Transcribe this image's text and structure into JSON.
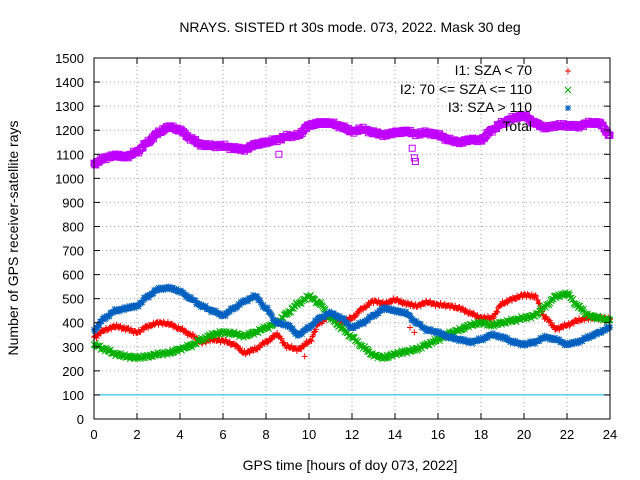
{
  "chart_data": {
    "type": "scatter",
    "title": "NRAYS. SISTED rt 30s mode. 073, 2022. Mask 30 deg",
    "xlabel": "GPS time [hours of doy 073, 2022]",
    "ylabel": "Number of GPS receiver-satellite rays",
    "xlim": [
      0,
      24
    ],
    "ylim": [
      0,
      1500
    ],
    "xticks": [
      "0",
      "2",
      "4",
      "6",
      "8",
      "10",
      "12",
      "14",
      "16",
      "18",
      "20",
      "22",
      "24"
    ],
    "yticks": [
      "0",
      "100",
      "200",
      "300",
      "400",
      "500",
      "600",
      "700",
      "800",
      "900",
      "1000",
      "1100",
      "1200",
      "1300",
      "1400",
      "1500"
    ],
    "grid": true,
    "legend_position": "top-right",
    "reference_line": {
      "y": 100,
      "color": "#00c0e0"
    },
    "series": [
      {
        "name": "I1: SZA < 70",
        "marker": "+",
        "color": "#ff0000",
        "x": [
          0,
          0.5,
          1,
          1.5,
          2,
          2.5,
          3,
          3.5,
          4,
          4.5,
          5,
          5.5,
          6,
          6.5,
          7,
          7.5,
          8,
          8.5,
          9,
          9.5,
          10,
          10.5,
          11,
          11.5,
          12,
          12.5,
          13,
          13.5,
          14,
          14.5,
          15,
          15.5,
          16,
          16.5,
          17,
          17.5,
          18,
          18.5,
          19,
          19.5,
          20,
          20.5,
          21,
          21.5,
          22,
          22.5,
          23,
          23.5,
          24
        ],
        "y": [
          340,
          370,
          385,
          375,
          360,
          385,
          400,
          395,
          375,
          350,
          320,
          330,
          325,
          310,
          275,
          290,
          320,
          350,
          300,
          290,
          320,
          400,
          430,
          400,
          420,
          460,
          490,
          480,
          495,
          480,
          470,
          485,
          475,
          470,
          460,
          440,
          420,
          420,
          480,
          500,
          515,
          510,
          420,
          375,
          390,
          410,
          420,
          420,
          415
        ]
      },
      {
        "name": "I2: 70 <= SZA <= 110",
        "marker": "x",
        "color": "#00b000",
        "x": [
          0,
          0.5,
          1,
          1.5,
          2,
          2.5,
          3,
          3.5,
          4,
          4.5,
          5,
          5.5,
          6,
          6.5,
          7,
          7.5,
          8,
          8.5,
          9,
          9.5,
          10,
          10.5,
          11,
          11.5,
          12,
          12.5,
          13,
          13.5,
          14,
          14.5,
          15,
          15.5,
          16,
          16.5,
          17,
          17.5,
          18,
          18.5,
          19,
          19.5,
          20,
          20.5,
          21,
          21.5,
          22,
          22.5,
          23,
          23.5,
          24
        ],
        "y": [
          310,
          290,
          270,
          260,
          255,
          260,
          270,
          275,
          290,
          305,
          330,
          350,
          360,
          355,
          345,
          360,
          380,
          400,
          440,
          480,
          510,
          480,
          420,
          380,
          340,
          300,
          265,
          255,
          270,
          280,
          290,
          310,
          330,
          355,
          370,
          390,
          400,
          390,
          400,
          410,
          420,
          430,
          470,
          510,
          520,
          470,
          430,
          420,
          410
        ]
      },
      {
        "name": "I3: SZA > 110",
        "marker": "*",
        "color": "#0060c0",
        "x": [
          0,
          0.5,
          1,
          1.5,
          2,
          2.5,
          3,
          3.5,
          4,
          4.5,
          5,
          5.5,
          6,
          6.5,
          7,
          7.5,
          8,
          8.5,
          9,
          9.5,
          10,
          10.5,
          11,
          11.5,
          12,
          12.5,
          13,
          13.5,
          14,
          14.5,
          15,
          15.5,
          16,
          16.5,
          17,
          17.5,
          18,
          18.5,
          19,
          19.5,
          20,
          20.5,
          21,
          21.5,
          22,
          22.5,
          23,
          23.5,
          24
        ],
        "y": [
          370,
          420,
          450,
          460,
          470,
          510,
          540,
          545,
          530,
          500,
          470,
          450,
          430,
          460,
          490,
          510,
          460,
          400,
          390,
          350,
          380,
          420,
          440,
          420,
          380,
          400,
          430,
          460,
          450,
          440,
          400,
          370,
          360,
          340,
          330,
          320,
          330,
          350,
          340,
          320,
          310,
          320,
          340,
          330,
          310,
          320,
          340,
          360,
          380
        ]
      },
      {
        "name": "Total",
        "marker": "square",
        "color": "#c000ff",
        "x": [
          0,
          0.5,
          1,
          1.5,
          2,
          2.5,
          3,
          3.5,
          4,
          4.5,
          5,
          5.5,
          6,
          6.5,
          7,
          7.5,
          8,
          8.5,
          9,
          9.5,
          10,
          10.5,
          11,
          11.5,
          12,
          12.5,
          13,
          13.5,
          14,
          14.5,
          15,
          15.5,
          16,
          16.5,
          17,
          17.5,
          18,
          18.5,
          19,
          19.5,
          20,
          20.5,
          21,
          21.5,
          22,
          22.5,
          23,
          23.5,
          24
        ],
        "y": [
          1060,
          1085,
          1095,
          1090,
          1110,
          1150,
          1190,
          1215,
          1200,
          1165,
          1140,
          1135,
          1135,
          1125,
          1120,
          1140,
          1150,
          1160,
          1175,
          1180,
          1220,
          1230,
          1230,
          1215,
          1195,
          1205,
          1190,
          1180,
          1190,
          1195,
          1185,
          1190,
          1180,
          1160,
          1150,
          1160,
          1160,
          1200,
          1230,
          1250,
          1260,
          1230,
          1210,
          1220,
          1220,
          1215,
          1230,
          1230,
          1180
        ]
      }
    ],
    "outliers": [
      {
        "series": "Total",
        "x": 8.6,
        "y": 1100
      },
      {
        "series": "Total",
        "x": 14.8,
        "y": 1125
      },
      {
        "series": "Total",
        "x": 14.9,
        "y": 1085
      },
      {
        "series": "Total",
        "x": 14.95,
        "y": 1070
      },
      {
        "series": "I1: SZA < 70",
        "x": 9.8,
        "y": 260
      },
      {
        "series": "I1: SZA < 70",
        "x": 14.9,
        "y": 360
      },
      {
        "series": "I1: SZA < 70",
        "x": 14.7,
        "y": 380
      }
    ]
  }
}
